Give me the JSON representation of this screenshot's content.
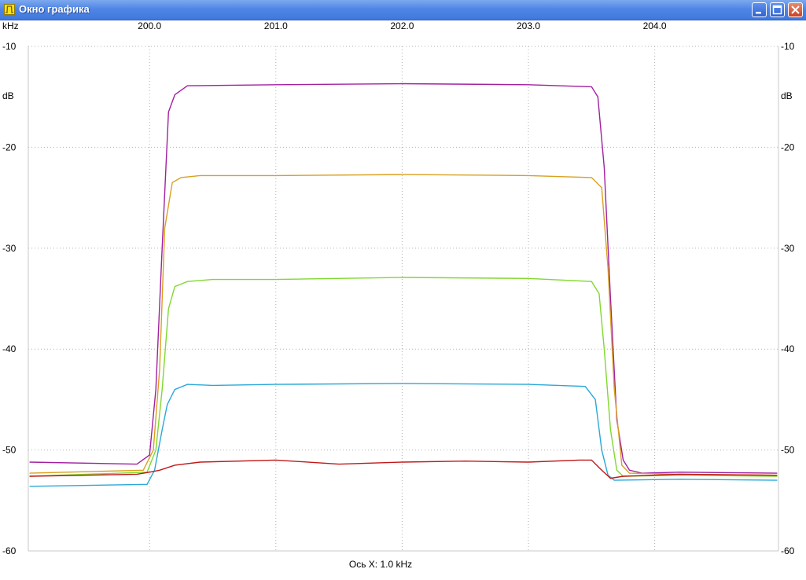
{
  "window": {
    "title": "Окно графика",
    "minimize_label": "Minimize",
    "maximize_label": "Maximize",
    "close_label": "Close"
  },
  "chart_data": {
    "type": "line",
    "x_unit": "kHz",
    "y_unit": "dB",
    "xlim": [
      199.04,
      204.98
    ],
    "ylim": [
      -60,
      -10
    ],
    "x_ticks": [
      "200.0",
      "201.0",
      "202.0",
      "203.0",
      "204.0"
    ],
    "y_ticks": [
      "-10",
      "-20",
      "-30",
      "-40",
      "-50",
      "-60"
    ],
    "x_axis_note": "Ось X: 1.0 kHz",
    "grid": true,
    "series": [
      {
        "color": "#a020a0",
        "x": [
          199.05,
          199.9,
          200.0,
          200.05,
          200.1,
          200.15,
          200.2,
          200.3,
          201.0,
          202.0,
          203.0,
          203.5,
          203.55,
          203.6,
          203.65,
          203.7,
          203.75,
          203.8,
          203.9,
          204.2,
          204.97
        ],
        "y": [
          -51.2,
          -51.4,
          -50.5,
          -44.0,
          -30.0,
          -16.5,
          -14.8,
          -13.9,
          -13.8,
          -13.7,
          -13.8,
          -14.0,
          -15.0,
          -22.0,
          -35.0,
          -47.0,
          -51.0,
          -52.0,
          -52.3,
          -52.2,
          -52.3
        ]
      },
      {
        "color": "#d9a020",
        "x": [
          199.05,
          199.95,
          200.03,
          200.08,
          200.12,
          200.18,
          200.25,
          200.4,
          201.0,
          202.0,
          203.0,
          203.5,
          203.58,
          203.63,
          203.68,
          203.74,
          203.8,
          204.2,
          204.97
        ],
        "y": [
          -52.3,
          -52.0,
          -50.0,
          -42.0,
          -28.0,
          -23.5,
          -23.0,
          -22.8,
          -22.8,
          -22.7,
          -22.8,
          -23.0,
          -24.0,
          -32.0,
          -44.0,
          -51.5,
          -52.3,
          -52.4,
          -52.5
        ]
      },
      {
        "color": "#80d830",
        "x": [
          199.05,
          199.98,
          200.05,
          200.1,
          200.15,
          200.2,
          200.3,
          200.5,
          201.0,
          202.0,
          203.0,
          203.5,
          203.56,
          203.6,
          203.65,
          203.7,
          203.75,
          204.2,
          204.97
        ],
        "y": [
          -52.6,
          -52.2,
          -50.0,
          -44.0,
          -36.0,
          -33.8,
          -33.3,
          -33.1,
          -33.1,
          -32.9,
          -33.0,
          -33.3,
          -34.5,
          -40.0,
          -48.0,
          -52.0,
          -52.6,
          -52.5,
          -52.6
        ]
      },
      {
        "color": "#2aa8d8",
        "x": [
          199.05,
          199.98,
          200.04,
          200.1,
          200.14,
          200.2,
          200.3,
          200.5,
          201.0,
          202.0,
          203.0,
          203.45,
          203.53,
          203.58,
          203.63,
          203.68,
          204.2,
          204.97
        ],
        "y": [
          -53.6,
          -53.4,
          -52.0,
          -48.0,
          -45.5,
          -44.0,
          -43.5,
          -43.6,
          -43.5,
          -43.4,
          -43.5,
          -43.7,
          -45.0,
          -50.0,
          -52.5,
          -53.0,
          -52.9,
          -53.0
        ]
      },
      {
        "color": "#c01818",
        "x": [
          199.05,
          199.9,
          200.0,
          200.08,
          200.2,
          200.4,
          201.0,
          201.5,
          202.0,
          202.5,
          203.0,
          203.4,
          203.5,
          203.58,
          203.65,
          203.75,
          204.2,
          204.97
        ],
        "y": [
          -52.6,
          -52.4,
          -52.2,
          -52.0,
          -51.5,
          -51.2,
          -51.0,
          -51.4,
          -51.2,
          -51.1,
          -51.2,
          -51.0,
          -51.0,
          -52.0,
          -52.8,
          -52.6,
          -52.4,
          -52.5
        ]
      }
    ]
  }
}
